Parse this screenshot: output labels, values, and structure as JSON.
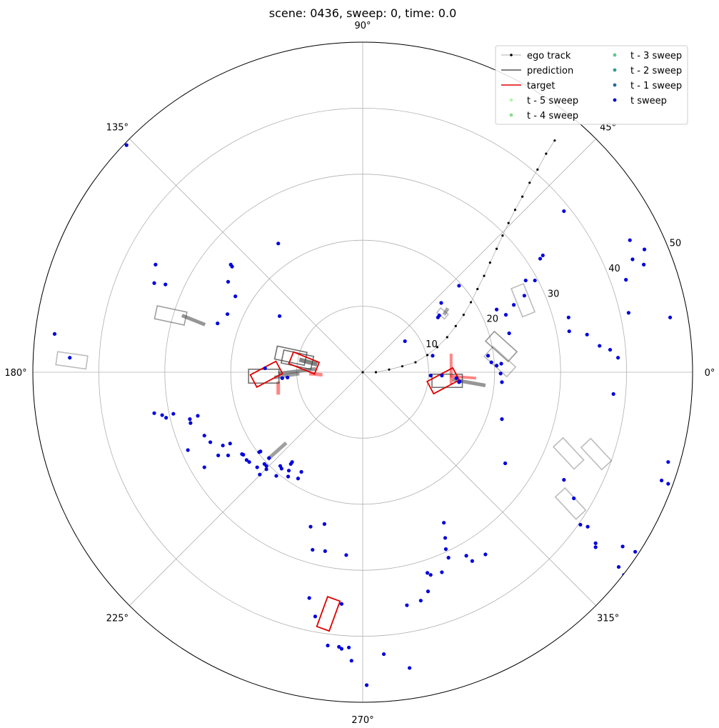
{
  "chart_data": {
    "type": "scatter",
    "projection": "polar",
    "title": "scene: 0436, sweep: 0, time: 0.0",
    "theta_ticks": [
      "0°",
      "45°",
      "90°",
      "135°",
      "180°",
      "225°",
      "270°",
      "315°"
    ],
    "r_ticks": [
      "10",
      "20",
      "30",
      "40",
      "50"
    ],
    "r_range": [
      0,
      50
    ],
    "grid": true,
    "legend_position": "top-right",
    "legend": [
      {
        "label": "ego track",
        "kind": "line-marker",
        "color": "#b0b0b0"
      },
      {
        "label": "prediction",
        "kind": "line",
        "color": "#555555"
      },
      {
        "label": "target",
        "kind": "line",
        "color": "#e00000"
      },
      {
        "label": "t - 5 sweep",
        "kind": "point",
        "color": "#b8f5b0"
      },
      {
        "label": "t - 4 sweep",
        "kind": "point",
        "color": "#86e08e"
      },
      {
        "label": "t - 3 sweep",
        "kind": "point",
        "color": "#5ec98a"
      },
      {
        "label": "t - 2 sweep",
        "kind": "point",
        "color": "#3a9a8e"
      },
      {
        "label": "t - 1 sweep",
        "kind": "point",
        "color": "#2a6a9a"
      },
      {
        "label": "t sweep",
        "kind": "point",
        "color": "#0000dd"
      }
    ],
    "ego_track": [
      [
        0,
        0
      ],
      [
        2,
        0
      ],
      [
        4,
        0.4
      ],
      [
        6,
        0.9
      ],
      [
        8,
        1.5
      ],
      [
        9.8,
        2.6
      ],
      [
        11.3,
        3.8
      ],
      [
        12.8,
        5.3
      ],
      [
        14.1,
        7
      ],
      [
        15.3,
        8.7
      ],
      [
        16.4,
        10.6
      ],
      [
        17.4,
        12.6
      ],
      [
        18.4,
        14.6
      ],
      [
        19.3,
        16.6
      ],
      [
        20.3,
        18.7
      ],
      [
        21.2,
        20.7
      ],
      [
        22.1,
        22.6
      ],
      [
        23.1,
        24.6
      ],
      [
        24.2,
        26.6
      ],
      [
        25.3,
        28.7
      ],
      [
        26.5,
        30.7
      ],
      [
        27.8,
        33.1
      ],
      [
        29.1,
        35.1
      ]
    ],
    "targets": [
      {
        "x": -14.6,
        "y": -0.3,
        "length": 4.4,
        "width": 2.1,
        "heading": 28
      },
      {
        "x": -8.9,
        "y": 1.4,
        "length": 4.2,
        "width": 1.9,
        "heading": -22
      },
      {
        "x": 12.2,
        "y": -1.3,
        "length": 4.4,
        "width": 2.1,
        "heading": 28
      },
      {
        "x": -5.2,
        "y": -36.6,
        "length": 4.8,
        "width": 2.0,
        "heading": 70
      }
    ],
    "target_trails": [
      {
        "points": [
          [
            13.4,
            2.8
          ],
          [
            13.4,
            -1.8
          ]
        ],
        "width": 4
      },
      {
        "points": [
          [
            13.2,
            -0.6
          ],
          [
            17.2,
            -0.9
          ]
        ],
        "width": 4
      },
      {
        "points": [
          [
            -12.8,
            -1.4
          ],
          [
            -12.8,
            -3.4
          ]
        ],
        "width": 5
      },
      {
        "points": [
          [
            -8.1,
            -0.2
          ],
          [
            -6.1,
            -0.4
          ]
        ],
        "width": 5
      }
    ],
    "predictions": [
      {
        "x": -15,
        "y": -0.6,
        "length": 4.6,
        "width": 2.1,
        "heading": 0,
        "alpha": 0.75
      },
      {
        "x": -10.9,
        "y": 2.5,
        "length": 4.6,
        "width": 2.0,
        "heading": -12,
        "alpha": 0.75
      },
      {
        "x": -9.9,
        "y": 1.9,
        "length": 4.6,
        "width": 2.0,
        "heading": -12,
        "alpha": 0.75
      },
      {
        "x": 12.8,
        "y": -1.3,
        "length": 4.6,
        "width": 2.0,
        "heading": 0,
        "alpha": 0.75
      },
      {
        "x": -29.1,
        "y": 8.6,
        "length": 4.6,
        "width": 2.0,
        "heading": -12,
        "alpha": 0.5
      },
      {
        "x": -44.1,
        "y": 1.8,
        "length": 4.6,
        "width": 2.0,
        "heading": -8,
        "alpha": 0.35
      },
      {
        "x": 21,
        "y": 3.9,
        "length": 4.6,
        "width": 2.0,
        "heading": -42,
        "alpha": 0.55
      },
      {
        "x": 20.8,
        "y": 1.6,
        "length": 4.6,
        "width": 2.0,
        "heading": -42,
        "alpha": 0.35
      },
      {
        "x": 24.3,
        "y": 10.9,
        "length": 4.6,
        "width": 2.0,
        "heading": -68,
        "alpha": 0.35
      },
      {
        "x": 31.2,
        "y": -12.3,
        "length": 4.6,
        "width": 2.0,
        "heading": -47,
        "alpha": 0.35
      },
      {
        "x": 31.5,
        "y": -19.9,
        "length": 4.6,
        "width": 2.0,
        "heading": -47,
        "alpha": 0.35
      },
      {
        "x": 35.4,
        "y": -12.4,
        "length": 4.6,
        "width": 2.0,
        "heading": -47,
        "alpha": 0.35
      },
      {
        "x": 12.1,
        "y": 8.9,
        "length": 1.5,
        "width": 0.9,
        "heading": -40,
        "alpha": 0.35
      }
    ],
    "prediction_trails": [
      {
        "points": [
          [
            -12.8,
            -0.2
          ],
          [
            -7.1,
            0.5
          ]
        ],
        "width": 5,
        "alpha": 0.55
      },
      {
        "points": [
          [
            -9.6,
            1.9
          ],
          [
            -6.9,
            1.2
          ]
        ],
        "width": 6,
        "alpha": 0.65
      },
      {
        "points": [
          [
            -13.4,
            -0.8
          ],
          [
            -9.6,
            -0.2
          ]
        ],
        "width": 5,
        "alpha": 0.5
      },
      {
        "points": [
          [
            13.6,
            -1.1
          ],
          [
            18.6,
            -2.0
          ]
        ],
        "width": 5,
        "alpha": 0.55
      },
      {
        "points": [
          [
            -27.4,
            8.6
          ],
          [
            -23.9,
            7.2
          ]
        ],
        "width": 5,
        "alpha": 0.55
      },
      {
        "points": [
          [
            12.3,
            8.7
          ],
          [
            12.9,
            9.7
          ]
        ],
        "width": 5,
        "alpha": 0.45
      },
      {
        "points": [
          [
            -14.4,
            -13.2
          ],
          [
            -11.6,
            -10.7
          ]
        ],
        "width": 5,
        "alpha": 0.5
      }
    ],
    "t_sweep": [
      [
        -31.4,
        16.3
      ],
      [
        -31.6,
        13.5
      ],
      [
        -29.9,
        13.3
      ],
      [
        -20.4,
        13.7
      ],
      [
        -20.0,
        16.3
      ],
      [
        -19.8,
        16.0
      ],
      [
        -19.3,
        11.5
      ],
      [
        -20.5,
        8.8
      ],
      [
        -22.0,
        7.4
      ],
      [
        -12.8,
        19.5
      ],
      [
        -12.6,
        8.5
      ],
      [
        -14.8,
        0.6
      ],
      [
        -12.2,
        -0.9
      ],
      [
        -11.4,
        -0.8
      ],
      [
        -46.7,
        5.8
      ],
      [
        -44.4,
        2.2
      ],
      [
        -35.8,
        34.4
      ],
      [
        -31.6,
        -6.2
      ],
      [
        -30.4,
        -6.5
      ],
      [
        -29.8,
        -6.9
      ],
      [
        -28.7,
        -6.3
      ],
      [
        -26.1,
        -7.7
      ],
      [
        -26.2,
        -7.1
      ],
      [
        -25.0,
        -6.6
      ],
      [
        -26.5,
        -11.8
      ],
      [
        -24.0,
        -9.6
      ],
      [
        -23.1,
        -10.6
      ],
      [
        -21.2,
        -11.1
      ],
      [
        -20.1,
        -10.8
      ],
      [
        -24.0,
        -14.4
      ],
      [
        -21.9,
        -12.6
      ],
      [
        -20.4,
        -12.6
      ],
      [
        -18.3,
        -12.4
      ],
      [
        -17.6,
        -13.3
      ],
      [
        -15.5,
        -12.0
      ],
      [
        -14.2,
        -13.0
      ],
      [
        -18.1,
        -12.5
      ],
      [
        -16.0,
        -14.4
      ],
      [
        -14.6,
        -14.2
      ],
      [
        -12.5,
        -14.2
      ],
      [
        -10.7,
        -13.6
      ],
      [
        -15.7,
        -12.1
      ],
      [
        -14.6,
        -14.7
      ],
      [
        -12.3,
        -14.6
      ],
      [
        -11.2,
        -14.9
      ],
      [
        -17.2,
        -13.6
      ],
      [
        -13.1,
        -15.7
      ],
      [
        -11.3,
        -15.8
      ],
      [
        -10.9,
        -13.9
      ],
      [
        -15.6,
        -15.5
      ],
      [
        -14.9,
        -13.9
      ],
      [
        -9.3,
        -15.1
      ],
      [
        -9.8,
        -16.1
      ],
      [
        -7.9,
        -23.4
      ],
      [
        -5.8,
        -23.0
      ],
      [
        -7.6,
        -26.9
      ],
      [
        -5.7,
        -27.1
      ],
      [
        -2.5,
        -27.7
      ],
      [
        -8.1,
        -34.2
      ],
      [
        -7.2,
        -37.0
      ],
      [
        -3.2,
        -35.1
      ],
      [
        -3.6,
        -41.6
      ],
      [
        -3.2,
        -41.9
      ],
      [
        -2.1,
        -41.7
      ],
      [
        -5.3,
        -41.4
      ],
      [
        -1.7,
        -43.7
      ],
      [
        0.6,
        -47.4
      ],
      [
        7.1,
        -44.8
      ],
      [
        3.2,
        -42.7
      ],
      [
        6.7,
        -35.3
      ],
      [
        8.8,
        -34.6
      ],
      [
        9.9,
        -33.2
      ],
      [
        9.8,
        -30.4
      ],
      [
        10.3,
        -30.7
      ],
      [
        12.0,
        -30.3
      ],
      [
        12.5,
        -25.1
      ],
      [
        12.6,
        -26.8
      ],
      [
        13.0,
        -28.1
      ],
      [
        16.6,
        -28.6
      ],
      [
        18.6,
        -27.6
      ],
      [
        15.7,
        -27.8
      ],
      [
        12.3,
        -22.8
      ],
      [
        21.6,
        -13.8
      ],
      [
        21.1,
        -7.1
      ],
      [
        21.1,
        -1.5
      ],
      [
        20.9,
        -0.2
      ],
      [
        10.6,
        2.5
      ],
      [
        10.3,
        -0.5
      ],
      [
        12.0,
        -0.5
      ],
      [
        14.2,
        -0.9
      ],
      [
        14.6,
        -1.5
      ],
      [
        14.7,
        -1.4
      ],
      [
        6.4,
        4.7
      ],
      [
        11.4,
        8.3
      ],
      [
        11.9,
        10.5
      ],
      [
        11.6,
        8.6
      ],
      [
        14.6,
        13.1
      ],
      [
        20.3,
        1.0
      ],
      [
        19.5,
        1.5
      ],
      [
        19.0,
        2.5
      ],
      [
        21.0,
        1.3
      ],
      [
        22.2,
        5.9
      ],
      [
        20.3,
        9.5
      ],
      [
        21.7,
        8.7
      ],
      [
        22.9,
        10.2
      ],
      [
        24.5,
        11.6
      ],
      [
        26.1,
        13.9
      ],
      [
        24.7,
        13.9
      ],
      [
        26.9,
        17.2
      ],
      [
        27.3,
        17.7
      ],
      [
        30.5,
        24.4
      ],
      [
        31.2,
        8.3
      ],
      [
        31.3,
        6.2
      ],
      [
        34.0,
        5.7
      ],
      [
        35.9,
        4.0
      ],
      [
        37.5,
        3.4
      ],
      [
        38.7,
        2.2
      ],
      [
        38.0,
        -3.3
      ],
      [
        40.3,
        9.0
      ],
      [
        39.9,
        14.0
      ],
      [
        40.5,
        20.0
      ],
      [
        42.6,
        16.3
      ],
      [
        40.9,
        17.1
      ],
      [
        42.7,
        18.6
      ],
      [
        46.6,
        8.3
      ],
      [
        46.3,
        -13.6
      ],
      [
        45.3,
        -16.4
      ],
      [
        46.3,
        -16.9
      ],
      [
        41.3,
        -27.2
      ],
      [
        39.6,
        -30.7
      ],
      [
        39.4,
        -26.4
      ],
      [
        38.8,
        -29.5
      ],
      [
        35.3,
        -26.5
      ],
      [
        30.5,
        -16.3
      ],
      [
        32.0,
        -19.1
      ],
      [
        33.0,
        -23.1
      ],
      [
        34.1,
        -23.4
      ],
      [
        35.3,
        -25.9
      ]
    ]
  }
}
